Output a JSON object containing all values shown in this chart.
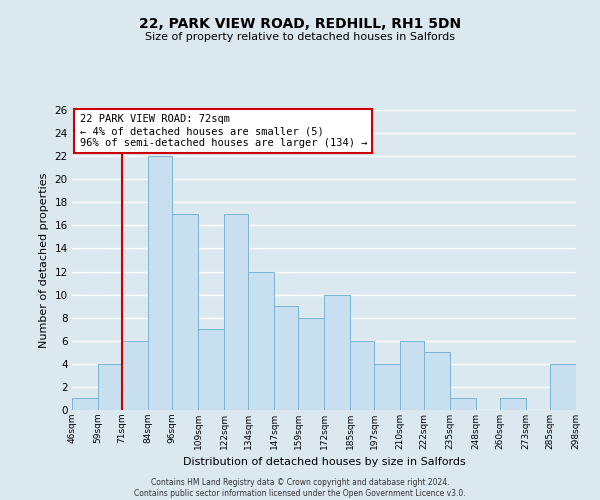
{
  "title": "22, PARK VIEW ROAD, REDHILL, RH1 5DN",
  "subtitle": "Size of property relative to detached houses in Salfords",
  "xlabel": "Distribution of detached houses by size in Salfords",
  "ylabel": "Number of detached properties",
  "footer_line1": "Contains HM Land Registry data © Crown copyright and database right 2024.",
  "footer_line2": "Contains public sector information licensed under the Open Government Licence v3.0.",
  "annotation_line1": "22 PARK VIEW ROAD: 72sqm",
  "annotation_line2": "← 4% of detached houses are smaller (5)",
  "annotation_line3": "96% of semi-detached houses are larger (134) →",
  "bar_edges": [
    46,
    59,
    71,
    84,
    96,
    109,
    122,
    134,
    147,
    159,
    172,
    185,
    197,
    210,
    222,
    235,
    248,
    260,
    273,
    285,
    298
  ],
  "bar_heights": [
    1,
    4,
    6,
    22,
    17,
    7,
    17,
    12,
    9,
    8,
    10,
    6,
    4,
    6,
    5,
    1,
    0,
    1,
    0,
    4
  ],
  "bar_color": "#c8dff0",
  "bar_edge_color": "#7ab4d4",
  "reference_line_x": 71,
  "reference_line_color": "#cc0000",
  "ylim": [
    0,
    26
  ],
  "yticks": [
    0,
    2,
    4,
    6,
    8,
    10,
    12,
    14,
    16,
    18,
    20,
    22,
    24,
    26
  ],
  "bg_color": "#dce8f0",
  "plot_bg_color": "#dce8f0",
  "grid_color": "#ffffff",
  "annotation_box_edge_color": "#cc0000",
  "annotation_box_bg": "#ffffff"
}
